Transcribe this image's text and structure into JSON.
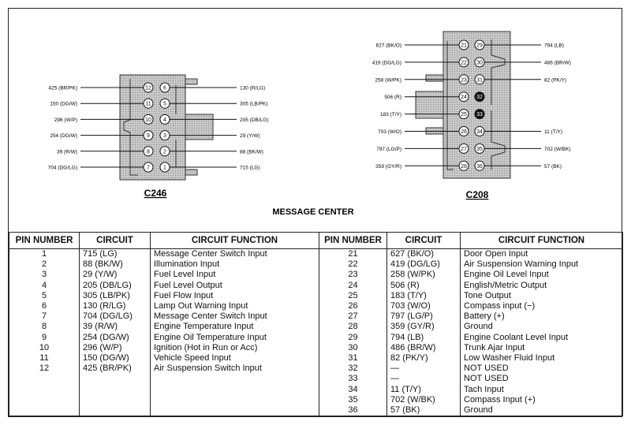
{
  "title": "MESSAGE CENTER",
  "connectors": {
    "c246": {
      "name": "C246",
      "left_labels": [
        {
          "pin": "12",
          "label": "425 (BR/PK)"
        },
        {
          "pin": "11",
          "label": "150 (DG/W)"
        },
        {
          "pin": "10",
          "label": "296 (W/P)"
        },
        {
          "pin": "9",
          "label": "254 (DG/W)"
        },
        {
          "pin": "8",
          "label": "39 (R/W)"
        },
        {
          "pin": "7",
          "label": "704 (DG/LG)"
        }
      ],
      "right_labels": [
        {
          "pin": "6",
          "label": "130 (R/LG)"
        },
        {
          "pin": "5",
          "label": "305 (LB/PK)"
        },
        {
          "pin": "4",
          "label": "205 (DB/LG)"
        },
        {
          "pin": "3",
          "label": "29 (Y/W)"
        },
        {
          "pin": "2",
          "label": "88 (BK/W)"
        },
        {
          "pin": "1",
          "label": "715 (LG)"
        }
      ]
    },
    "c208": {
      "name": "C208",
      "left_labels": [
        {
          "pin": "21",
          "label": "627 (BK/O)"
        },
        {
          "pin": "22",
          "label": "419 (DG/LG)"
        },
        {
          "pin": "23",
          "label": "258 (W/PK)"
        },
        {
          "pin": "24",
          "label": "506 (R)"
        },
        {
          "pin": "25",
          "label": "183 (T/Y)"
        },
        {
          "pin": "26",
          "label": "703 (W/O)"
        },
        {
          "pin": "27",
          "label": "797 (LG/P)"
        },
        {
          "pin": "28",
          "label": "359 (GY/R)"
        }
      ],
      "right_labels": [
        {
          "pin": "29",
          "label": "794 (LB)"
        },
        {
          "pin": "30",
          "label": "486 (BR/W)"
        },
        {
          "pin": "31",
          "label": "82 (PK/Y)"
        },
        {
          "pin": "32",
          "label": "",
          "filled": true
        },
        {
          "pin": "33",
          "label": "",
          "filled": true
        },
        {
          "pin": "34",
          "label": "11 (T/Y)"
        },
        {
          "pin": "35",
          "label": "702 (W/BK)"
        },
        {
          "pin": "36",
          "label": "57 (BK)"
        }
      ]
    }
  },
  "table": {
    "headers": [
      "PIN NUMBER",
      "CIRCUIT",
      "CIRCUIT FUNCTION"
    ],
    "left_rows": [
      [
        "1",
        "715 (LG)",
        "Message Center Switch Input"
      ],
      [
        "2",
        "88 (BK/W)",
        "Illumination Input"
      ],
      [
        "3",
        "29 (Y/W)",
        "Fuel Level Input"
      ],
      [
        "4",
        "205 (DB/LG)",
        "Fuel Level Output"
      ],
      [
        "5",
        "305 (LB/PK)",
        "Fuel Flow Input"
      ],
      [
        "6",
        "130 (R/LG)",
        "Lamp Out Warning Input"
      ],
      [
        "7",
        "704 (DG/LG)",
        "Message Center Switch Input"
      ],
      [
        "8",
        "39 (R/W)",
        "Engine Temperature Input"
      ],
      [
        "9",
        "254 (DG/W)",
        "Engine Oil Temperature Input"
      ],
      [
        "10",
        "296 (W/P)",
        "Ignition (Hot in Run or Acc)"
      ],
      [
        "11",
        "150 (DG/W)",
        "Vehicle Speed Input"
      ],
      [
        "12",
        "425 (BR/PK)",
        "Air Suspension Switch Input"
      ]
    ],
    "right_rows": [
      [
        "21",
        "627 (BK/O)",
        "Door Open Input"
      ],
      [
        "22",
        "419 (DG/LG)",
        "Air Suspension Warning Input"
      ],
      [
        "23",
        "258 (W/PK)",
        "Engine Oil Level Input"
      ],
      [
        "24",
        "506 (R)",
        "English/Metric Output"
      ],
      [
        "25",
        "183 (T/Y)",
        "Tone Output"
      ],
      [
        "26",
        "703 (W/O)",
        "Compass input (−)"
      ],
      [
        "27",
        "797 (LG/P)",
        "Battery (+)"
      ],
      [
        "28",
        "359 (GY/R)",
        "Ground"
      ],
      [
        "29",
        "794 (LB)",
        "Engine Coolant Level Input"
      ],
      [
        "30",
        "486 (BR/W)",
        "Trunk Ajar Input"
      ],
      [
        "31",
        "82 (PK/Y)",
        "Low Washer Fluid Input"
      ],
      [
        "32",
        "—",
        "NOT USED"
      ],
      [
        "33",
        "—",
        "NOT USED"
      ],
      [
        "34",
        "11 (T/Y)",
        "Tach Input"
      ],
      [
        "35",
        "702 (W/BK)",
        "Compass Input (+)"
      ],
      [
        "36",
        "57 (BK)",
        "Ground"
      ]
    ]
  }
}
